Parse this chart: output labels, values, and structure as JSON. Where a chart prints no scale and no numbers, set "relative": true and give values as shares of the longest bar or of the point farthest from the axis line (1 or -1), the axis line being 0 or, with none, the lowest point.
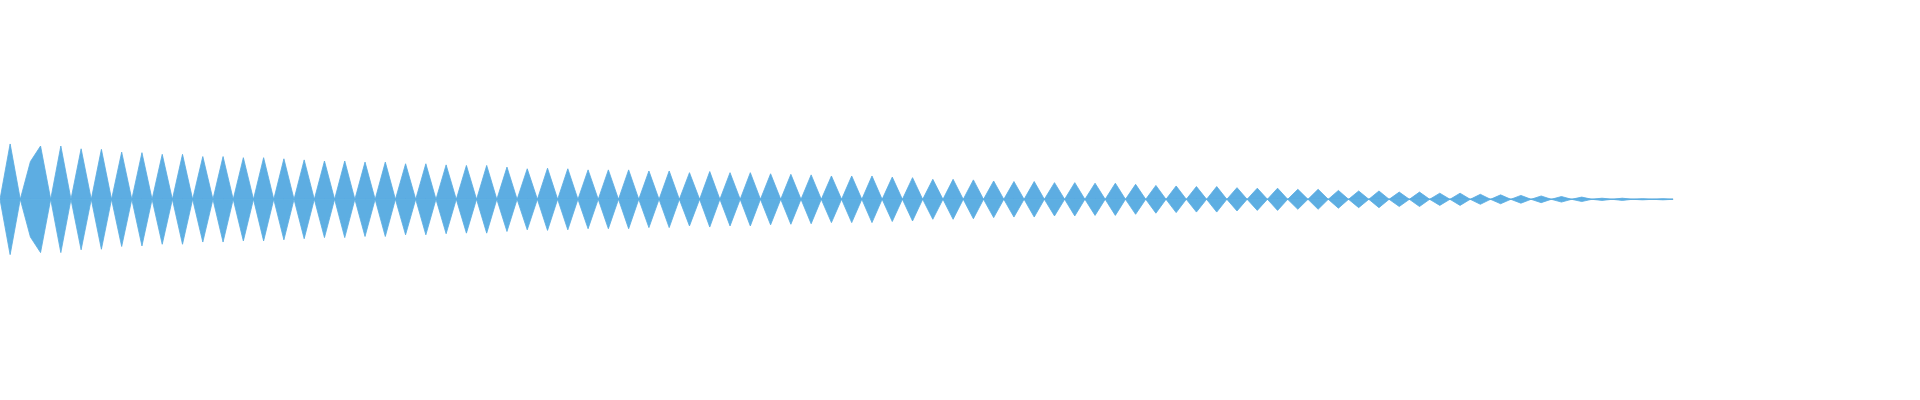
{
  "chart_data": {
    "type": "area",
    "relative": true,
    "tick_labels": false,
    "categories": [
      null,
      null,
      null,
      null,
      null,
      null,
      null,
      null,
      null,
      null,
      null,
      null,
      null,
      null,
      null,
      null,
      null,
      null,
      null,
      null,
      null,
      null,
      null,
      null,
      null,
      null,
      null,
      null,
      null,
      null,
      null,
      null,
      null,
      null,
      null,
      null,
      null,
      null,
      null,
      null,
      null,
      null,
      null,
      null,
      null,
      null,
      null,
      null,
      null,
      null,
      null,
      null,
      null,
      null,
      null,
      null,
      null,
      null,
      null,
      null,
      null,
      null,
      null,
      null,
      null,
      null,
      null,
      null,
      null,
      null,
      null,
      null,
      null,
      null,
      null,
      null,
      null,
      null,
      null,
      null,
      null,
      null,
      null,
      null,
      null,
      null,
      null,
      null,
      null,
      null,
      null,
      null,
      null,
      null,
      null,
      null,
      null,
      null,
      null,
      null,
      null,
      null,
      null,
      null,
      null,
      null,
      null,
      null,
      null,
      null,
      null,
      null,
      null,
      null,
      null,
      null,
      null,
      null,
      null,
      null,
      null,
      null,
      null,
      null,
      null,
      null,
      null,
      null,
      null,
      null,
      null,
      null,
      null,
      null,
      null,
      null,
      null,
      null,
      null,
      null,
      null,
      null,
      null,
      null,
      null,
      null,
      null,
      null,
      null,
      null,
      null,
      null,
      null,
      null,
      null,
      null,
      null,
      null,
      null,
      null,
      null,
      null,
      null,
      null,
      null,
      null
    ],
    "series": [
      {
        "color": "#5dade2",
        "values": [
          0,
          1.0,
          0,
          0.68,
          0.96,
          0,
          0.96,
          0,
          0.91,
          0,
          0.9,
          0,
          0.85,
          0,
          0.84,
          0,
          0.81,
          0,
          0.81,
          0,
          0.77,
          0,
          0.77,
          0,
          0.75,
          0,
          0.75,
          0,
          0.73,
          0,
          0.71,
          0,
          0.69,
          0,
          0.69,
          0,
          0.67,
          0,
          0.67,
          0,
          0.64,
          0,
          0.64,
          0,
          0.62,
          0,
          0.61,
          0,
          0.61,
          0,
          0.58,
          0,
          0.55,
          0,
          0.56,
          0,
          0.55,
          0,
          0.53,
          0,
          0.53,
          0,
          0.53,
          0,
          0.51,
          0,
          0.51,
          0,
          0.48,
          0,
          0.5,
          0,
          0.48,
          0,
          0.48,
          0,
          0.46,
          0,
          0.45,
          0,
          0.44,
          0,
          0.42,
          0,
          0.42,
          0,
          0.42,
          0,
          0.4,
          0,
          0.39,
          0,
          0.36,
          0,
          0.36,
          0,
          0.35,
          0,
          0.33,
          0,
          0.32,
          0,
          0.32,
          0,
          0.3,
          0,
          0.3,
          0,
          0.29,
          0,
          0.29,
          0,
          0.27,
          0,
          0.25,
          0,
          0.24,
          0,
          0.23,
          0,
          0.23,
          0,
          0.21,
          0,
          0.2,
          0,
          0.2,
          0,
          0.18,
          0,
          0.18,
          0,
          0.16,
          0,
          0.15,
          0,
          0.15,
          0,
          0.13,
          0,
          0.13,
          0,
          0.11,
          0,
          0.11,
          0,
          0.09,
          0,
          0.08,
          0,
          0.07,
          0,
          0.06,
          0,
          0.05,
          0,
          0.04,
          0,
          0.02,
          0,
          0.02,
          0,
          0.01,
          0,
          0.01,
          0
        ]
      },
      {
        "color": "#5daee2",
        "values": [
          0,
          -1.0,
          0,
          -0.68,
          -0.96,
          0,
          -0.96,
          0,
          -0.91,
          0,
          -0.9,
          0,
          -0.85,
          0,
          -0.84,
          0,
          -0.81,
          0,
          -0.81,
          0,
          -0.77,
          0,
          -0.77,
          0,
          -0.75,
          0,
          -0.75,
          0,
          -0.73,
          0,
          -0.71,
          0,
          -0.69,
          0,
          -0.69,
          0,
          -0.67,
          0,
          -0.67,
          0,
          -0.64,
          0,
          -0.64,
          0,
          -0.62,
          0,
          -0.61,
          0,
          -0.61,
          0,
          -0.58,
          0,
          -0.55,
          0,
          -0.56,
          0,
          -0.55,
          0,
          -0.53,
          0,
          -0.53,
          0,
          -0.53,
          0,
          -0.51,
          0,
          -0.51,
          0,
          -0.48,
          0,
          -0.5,
          0,
          -0.48,
          0,
          -0.48,
          0,
          -0.46,
          0,
          -0.45,
          0,
          -0.44,
          0,
          -0.42,
          0,
          -0.42,
          0,
          -0.42,
          0,
          -0.4,
          0,
          -0.39,
          0,
          -0.36,
          0,
          -0.36,
          0,
          -0.35,
          0,
          -0.33,
          0,
          -0.32,
          0,
          -0.32,
          0,
          -0.3,
          0,
          -0.3,
          0,
          -0.29,
          0,
          -0.29,
          0,
          -0.27,
          0,
          -0.25,
          0,
          -0.24,
          0,
          -0.23,
          0,
          -0.23,
          0,
          -0.21,
          0,
          -0.2,
          0,
          -0.2,
          0,
          -0.18,
          0,
          -0.18,
          0,
          -0.16,
          0,
          -0.15,
          0,
          -0.15,
          0,
          -0.13,
          0,
          -0.13,
          0,
          -0.11,
          0,
          -0.11,
          0,
          -0.09,
          0,
          -0.08,
          0,
          -0.07,
          0,
          -0.06,
          0,
          -0.05,
          0,
          -0.04,
          0,
          -0.02,
          0,
          -0.02,
          0,
          -0.01,
          0,
          -0.01,
          0
        ]
      }
    ]
  }
}
